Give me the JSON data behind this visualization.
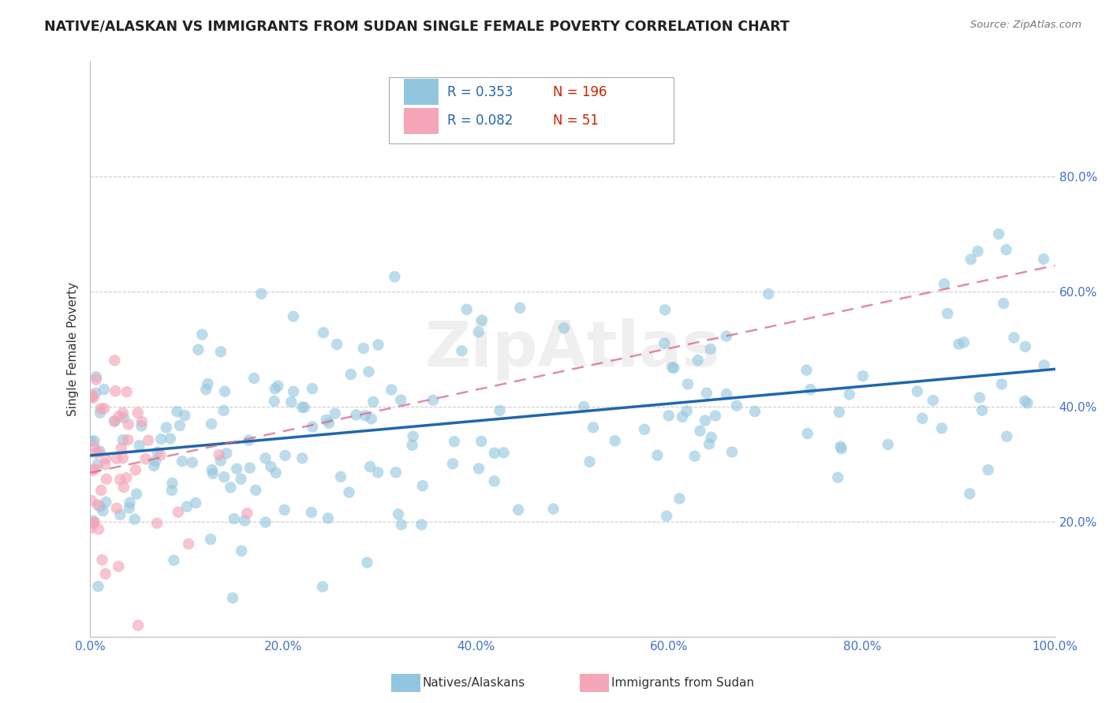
{
  "title": "NATIVE/ALASKAN VS IMMIGRANTS FROM SUDAN SINGLE FEMALE POVERTY CORRELATION CHART",
  "source": "Source: ZipAtlas.com",
  "ylabel": "Single Female Poverty",
  "watermark": "ZipAtlas",
  "blue_R": 0.353,
  "blue_N": 196,
  "pink_R": 0.082,
  "pink_N": 51,
  "blue_label": "Natives/Alaskans",
  "pink_label": "Immigrants from Sudan",
  "blue_color": "#92c5de",
  "pink_color": "#f4a5b8",
  "blue_line_color": "#2166ac",
  "pink_line_color": "#d4698a",
  "legend_R_color": "#2166ac",
  "legend_N_color": "#cc2200",
  "background_color": "#ffffff",
  "grid_color": "#cccccc",
  "title_color": "#222222",
  "tick_color": "#4472c4",
  "seed": 12,
  "xlim": [
    0.0,
    1.0
  ],
  "ylim": [
    0.0,
    1.0
  ],
  "yticks": [
    0.2,
    0.4,
    0.6,
    0.8
  ],
  "xticks": [
    0.0,
    0.2,
    0.4,
    0.6,
    0.8,
    1.0
  ],
  "blue_line_x0": 0.0,
  "blue_line_y0": 0.315,
  "blue_line_x1": 1.0,
  "blue_line_y1": 0.465,
  "pink_line_x0": 0.0,
  "pink_line_x1": 1.0,
  "pink_line_y0": 0.285,
  "pink_line_y1": 0.645
}
